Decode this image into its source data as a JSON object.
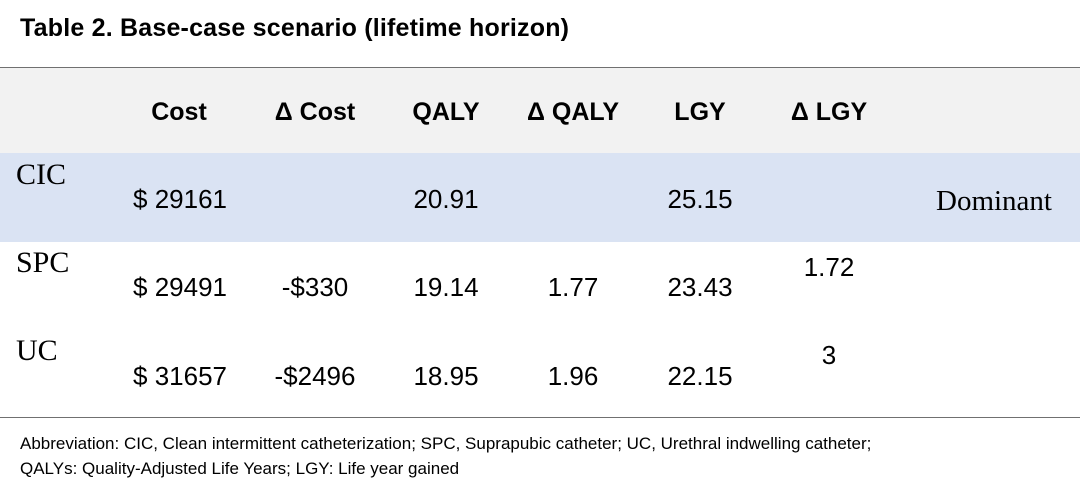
{
  "title": "Table 2. Base-case scenario (lifetime horizon)",
  "columns": [
    "Cost",
    "Δ Cost",
    "QALY",
    "Δ QALY",
    "LGY",
    "Δ LGY"
  ],
  "rows": [
    {
      "label": "CIC",
      "cost": "$ 29161",
      "delta_cost": "",
      "qaly": "20.91",
      "delta_qaly": "",
      "lgy": "25.15",
      "delta_lgy": "",
      "note": "Dominant"
    },
    {
      "label": "SPC",
      "cost": "$ 29491",
      "delta_cost": "-$330",
      "qaly": "19.14",
      "delta_qaly": "1.77",
      "lgy": "23.43",
      "delta_lgy": "1.72"
    },
    {
      "label": "UC",
      "cost": "$ 31657",
      "delta_cost": "-$2496",
      "qaly": "18.95",
      "delta_qaly": "1.96",
      "lgy": "22.15",
      "delta_lgy": "3"
    }
  ],
  "footnote": {
    "line1": "Abbreviation: CIC, Clean intermittent catheterization; SPC, Suprapubic catheter; UC, Urethral indwelling catheter;",
    "line2": "QALYs: Quality-Adjusted Life Years; LGY:  Life year gained"
  }
}
